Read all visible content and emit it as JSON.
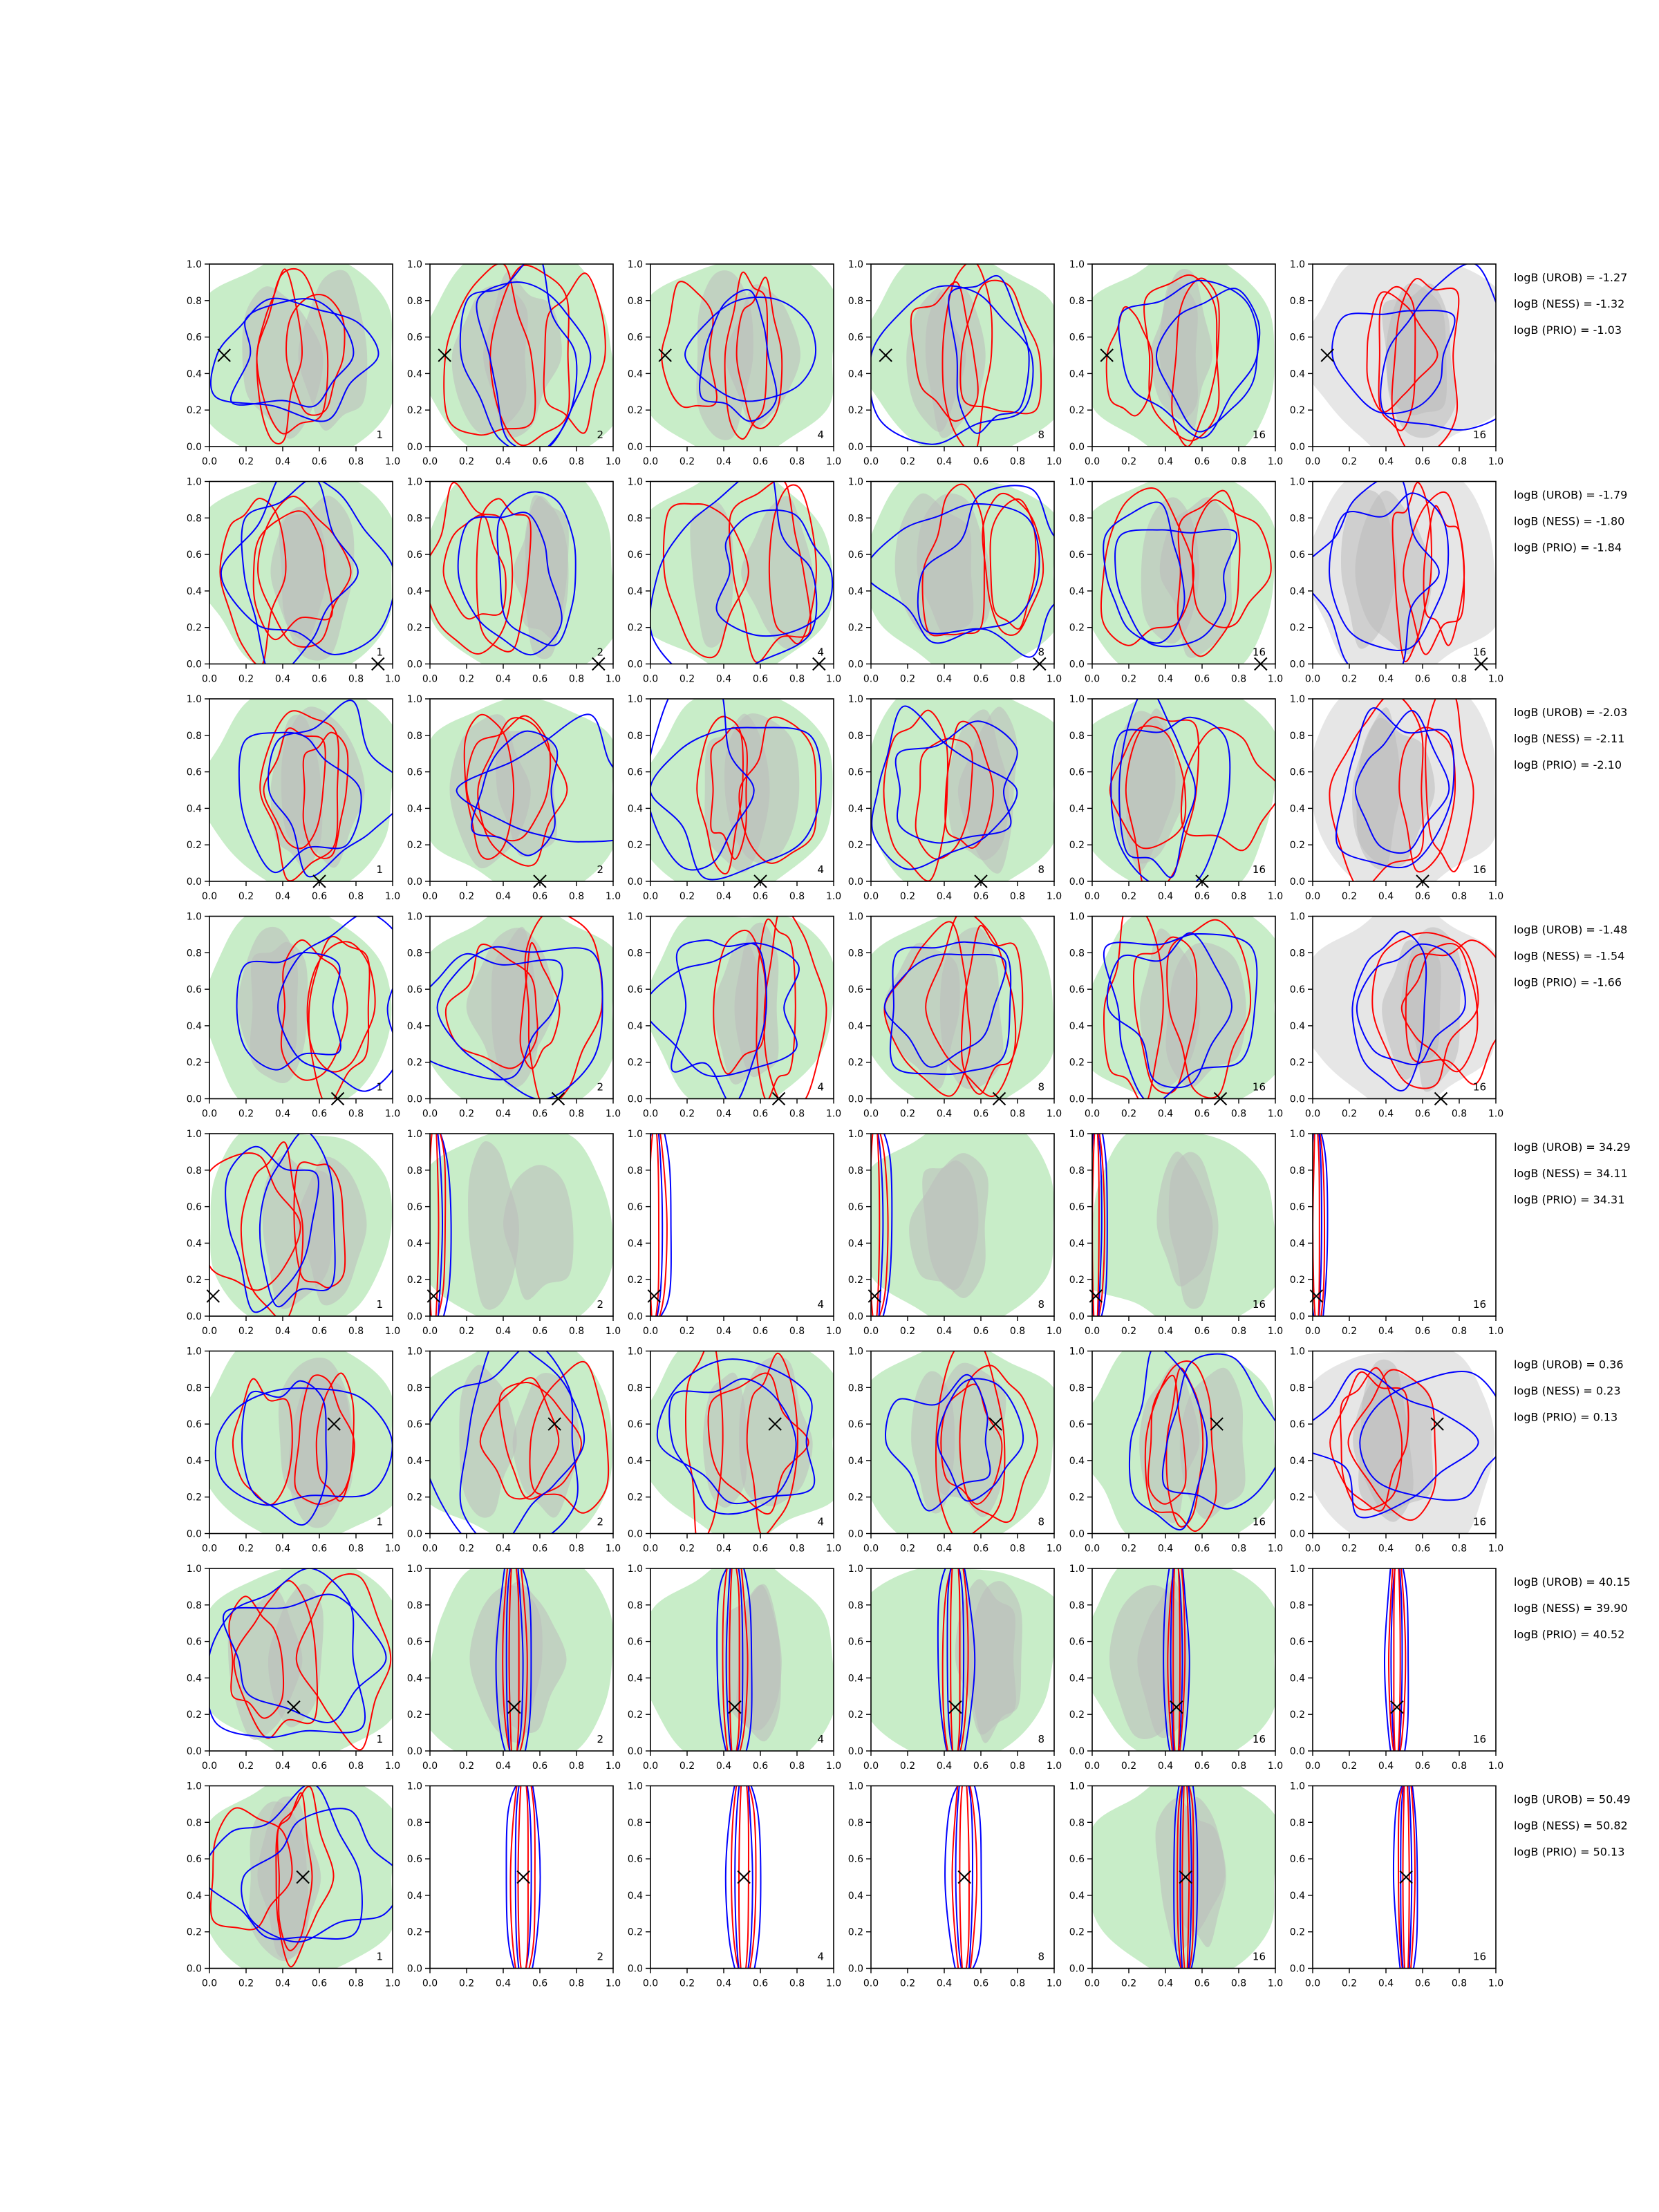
{
  "chart_data": {
    "type": "contour",
    "layout": {
      "rows": 8,
      "cols": 6
    },
    "axes": {
      "xlim": [
        0.0,
        1.0
      ],
      "ylim": [
        0.0,
        1.0
      ],
      "xticks": [
        "0.0",
        "0.2",
        "0.4",
        "0.6",
        "0.8",
        "1.0"
      ],
      "yticks": [
        "0.0",
        "0.2",
        "0.4",
        "0.6",
        "0.8",
        "1.0"
      ],
      "grid": false
    },
    "panel_labels": [
      "1",
      "2",
      "4",
      "8",
      "16",
      "16"
    ],
    "colors": {
      "red_contour": "#ff0000",
      "blue_contour": "#0000ff",
      "green_fill": "#c8edc8",
      "grey_fill": "#bcbcbc",
      "light_grey_fill": "#e6e6e6"
    },
    "rows": [
      {
        "true_point": [
          0.08,
          0.5
        ],
        "annotations": [
          "logB (UROB) = -1.27",
          "logB (NESS) = -1.32",
          "logB (PRIO) = -1.03"
        ]
      },
      {
        "true_point": [
          0.92,
          0.0
        ],
        "annotations": [
          "logB (UROB) = -1.79",
          "logB (NESS) = -1.80",
          "logB (PRIO) = -1.84"
        ]
      },
      {
        "true_point": [
          0.6,
          0.0
        ],
        "annotations": [
          "logB (UROB) = -2.03",
          "logB (NESS) = -2.11",
          "logB (PRIO) = -2.10"
        ]
      },
      {
        "true_point": [
          0.7,
          0.0
        ],
        "annotations": [
          "logB (UROB) = -1.48",
          "logB (NESS) = -1.54",
          "logB (PRIO) = -1.66"
        ]
      },
      {
        "true_point": [
          0.02,
          0.11
        ],
        "annotations": [
          "logB (UROB) = 34.29",
          "logB (NESS) = 34.11",
          "logB (PRIO) = 34.31"
        ]
      },
      {
        "true_point": [
          0.68,
          0.6
        ],
        "annotations": [
          "logB (UROB) = 0.36",
          "logB (NESS) = 0.23",
          "logB (PRIO) = 0.13"
        ]
      },
      {
        "true_point": [
          0.46,
          0.24
        ],
        "annotations": [
          "logB (UROB) = 40.15",
          "logB (NESS) = 39.90",
          "logB (PRIO) = 40.52"
        ]
      },
      {
        "true_point": [
          0.51,
          0.5
        ],
        "annotations": [
          "logB (UROB) = 50.49",
          "logB (NESS) = 50.82",
          "logB (PRIO) = 50.13"
        ]
      }
    ]
  }
}
